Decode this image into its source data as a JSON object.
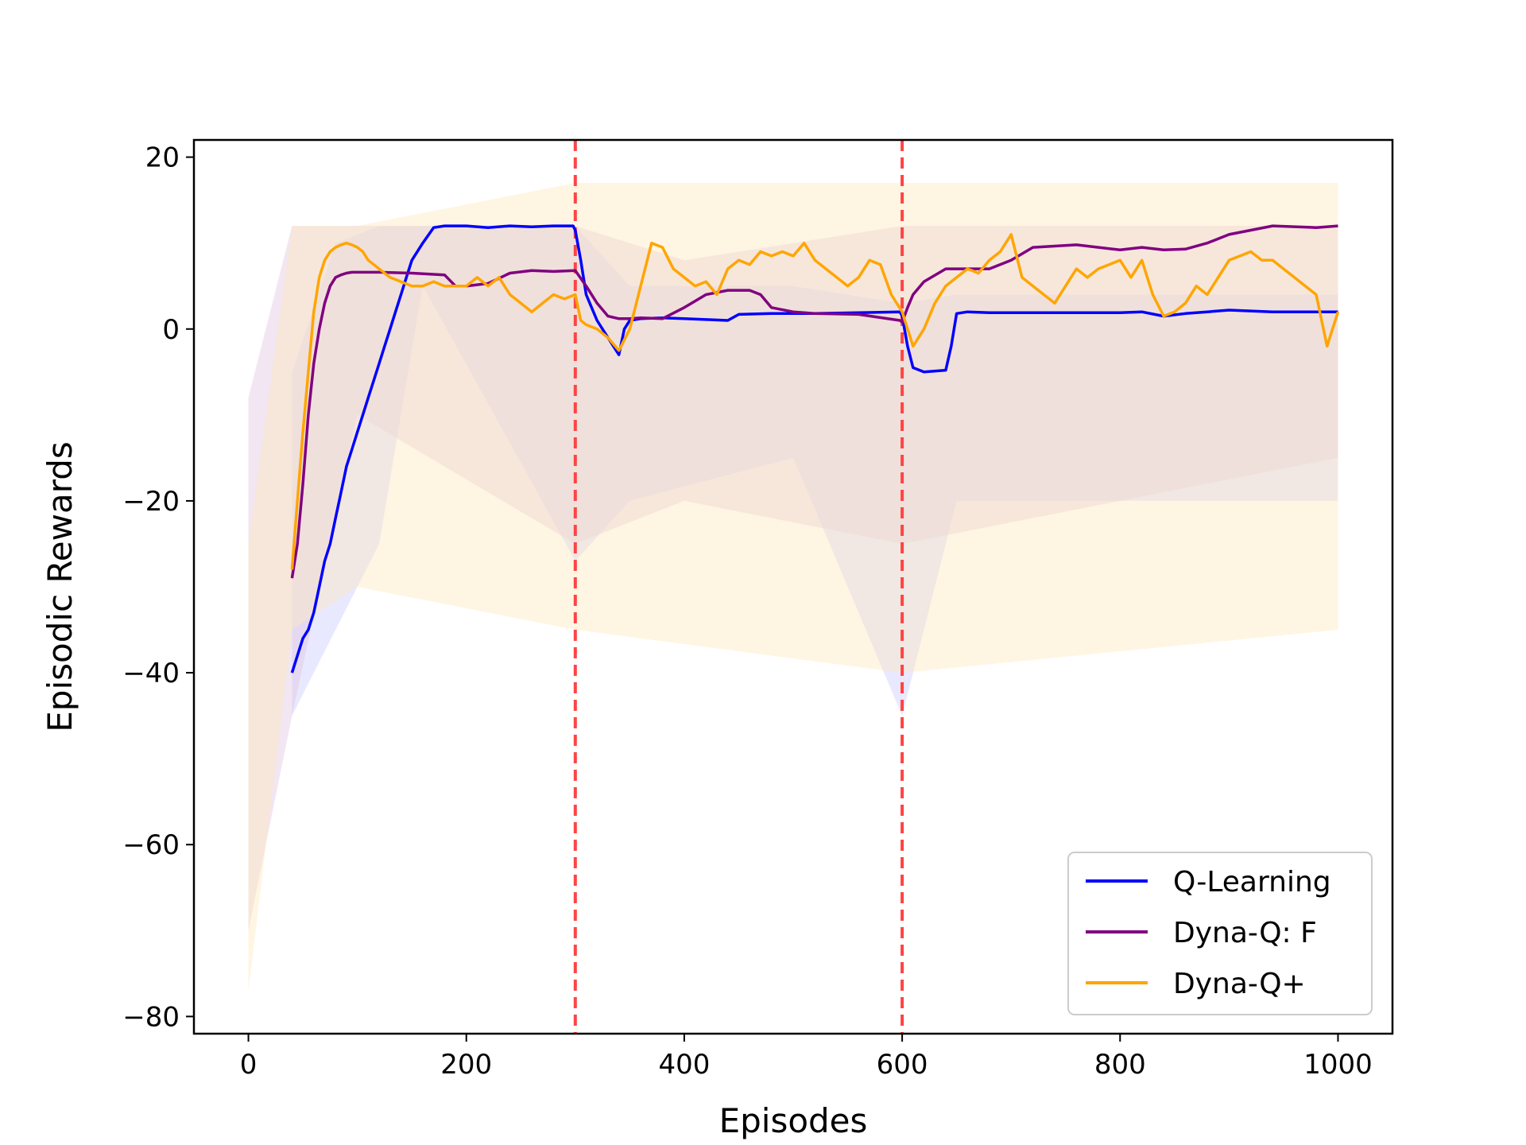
{
  "chart_data": {
    "type": "line",
    "title": "",
    "xlabel": "Episodes",
    "ylabel": "Episodic Rewards",
    "xlim": [
      -50,
      1050
    ],
    "ylim": [
      -82,
      22
    ],
    "xticks": [
      0,
      200,
      400,
      600,
      800,
      1000
    ],
    "yticks": [
      -80,
      -60,
      -40,
      -20,
      0,
      20
    ],
    "xtick_labels": [
      "0",
      "200",
      "400",
      "600",
      "800",
      "1000"
    ],
    "ytick_labels": [
      "−80",
      "−60",
      "−40",
      "−20",
      "0",
      "20"
    ],
    "grid": false,
    "legend_position": "bottom-right",
    "vertical_markers": [
      {
        "x": 300,
        "color": "#ff4444",
        "style": "dashed"
      },
      {
        "x": 600,
        "color": "#ff4444",
        "style": "dashed"
      }
    ],
    "series": [
      {
        "name": "Q-Learning",
        "color": "#0000ff",
        "x": [
          40,
          45,
          50,
          55,
          60,
          65,
          70,
          75,
          80,
          85,
          90,
          95,
          100,
          105,
          110,
          115,
          120,
          125,
          130,
          135,
          140,
          145,
          150,
          160,
          170,
          180,
          200,
          220,
          240,
          260,
          280,
          298,
          300,
          305,
          310,
          320,
          330,
          340,
          345,
          350,
          360,
          380,
          400,
          420,
          440,
          450,
          480,
          520,
          560,
          598,
          600,
          605,
          610,
          620,
          640,
          645,
          650,
          660,
          680,
          720,
          760,
          800,
          820,
          840,
          860,
          880,
          900,
          940,
          980,
          1000
        ],
        "values": [
          -40,
          -38,
          -36,
          -35,
          -33,
          -30,
          -27,
          -25,
          -22,
          -19,
          -16,
          -14,
          -12,
          -10,
          -8,
          -6,
          -4,
          -2,
          0,
          2,
          4,
          6,
          8,
          10,
          11.8,
          12,
          12,
          11.8,
          12,
          11.9,
          12,
          12,
          11.5,
          8,
          4,
          1,
          -1,
          -3,
          0,
          1,
          1.2,
          1.3,
          1.2,
          1.1,
          1,
          1.7,
          1.8,
          1.8,
          1.9,
          2,
          1.5,
          -2,
          -4.5,
          -5,
          -4.8,
          -2,
          1.8,
          2,
          1.9,
          1.9,
          1.9,
          1.9,
          2,
          1.5,
          1.8,
          2,
          2.2,
          2,
          2,
          2
        ]
      },
      {
        "name": "Dyna-Q: F",
        "color": "#800080",
        "x": [
          40,
          45,
          50,
          55,
          60,
          65,
          70,
          75,
          80,
          85,
          90,
          95,
          100,
          120,
          150,
          180,
          190,
          200,
          220,
          240,
          260,
          280,
          300,
          310,
          320,
          330,
          340,
          350,
          360,
          380,
          400,
          420,
          440,
          460,
          470,
          480,
          500,
          520,
          560,
          598,
          600,
          605,
          610,
          620,
          640,
          660,
          680,
          700,
          720,
          760,
          800,
          820,
          840,
          860,
          880,
          900,
          940,
          980,
          1000
        ],
        "values": [
          -29,
          -25,
          -18,
          -10,
          -4,
          0,
          3,
          5,
          6,
          6.3,
          6.5,
          6.6,
          6.6,
          6.6,
          6.5,
          6.3,
          5,
          5,
          5.3,
          6.5,
          6.8,
          6.7,
          6.8,
          5,
          3,
          1.5,
          1.2,
          1.2,
          1.3,
          1.2,
          2.5,
          4,
          4.5,
          4.5,
          4,
          2.5,
          2,
          1.8,
          1.7,
          1,
          0.8,
          2.5,
          4,
          5.5,
          7,
          7,
          7,
          8,
          9.5,
          9.8,
          9.2,
          9.5,
          9.2,
          9.3,
          10,
          11,
          12,
          11.8,
          12
        ]
      },
      {
        "name": "Dyna-Q+",
        "color": "#ffa500",
        "x": [
          40,
          45,
          50,
          55,
          60,
          65,
          70,
          75,
          80,
          85,
          90,
          95,
          100,
          105,
          110,
          120,
          130,
          140,
          150,
          160,
          170,
          180,
          190,
          200,
          210,
          220,
          230,
          240,
          250,
          260,
          270,
          280,
          290,
          300,
          305,
          310,
          320,
          330,
          340,
          350,
          360,
          370,
          380,
          390,
          400,
          410,
          420,
          430,
          440,
          450,
          460,
          470,
          480,
          490,
          500,
          510,
          520,
          530,
          540,
          550,
          560,
          570,
          580,
          590,
          600,
          610,
          620,
          630,
          640,
          650,
          660,
          670,
          680,
          690,
          700,
          710,
          720,
          730,
          740,
          750,
          760,
          770,
          780,
          790,
          800,
          810,
          820,
          830,
          840,
          850,
          860,
          870,
          880,
          890,
          900,
          910,
          920,
          930,
          940,
          950,
          960,
          970,
          980,
          990,
          1000
        ],
        "values": [
          -28,
          -20,
          -12,
          -5,
          2,
          6,
          8,
          9,
          9.5,
          9.8,
          10,
          9.8,
          9.5,
          9,
          8,
          7,
          6,
          5.5,
          5,
          5,
          5.5,
          5,
          5,
          5,
          6,
          5,
          6,
          4,
          3,
          2,
          3,
          4,
          3.5,
          4,
          1,
          0.5,
          0,
          -1,
          -2.5,
          0,
          5,
          10,
          9.5,
          7,
          6,
          5,
          5.5,
          4,
          7,
          8,
          7.5,
          9,
          8.5,
          9,
          8.5,
          10,
          8,
          7,
          6,
          5,
          6,
          8,
          7.5,
          4,
          2,
          -2,
          0,
          3,
          5,
          6,
          7,
          6.5,
          8,
          9,
          11,
          6,
          5,
          4,
          3,
          5,
          7,
          6,
          7,
          7.5,
          8,
          6,
          8,
          4,
          1.5,
          2,
          3,
          5,
          4,
          6,
          8,
          8.5,
          9,
          8,
          8,
          7,
          6,
          5,
          4,
          -2,
          2
        ]
      }
    ],
    "raw_bands": [
      {
        "name": "Q-Learning",
        "color": "#ccccff",
        "segments": [
          [
            40,
            -45,
            -5
          ],
          [
            80,
            -35,
            10
          ],
          [
            120,
            -25,
            12
          ],
          [
            160,
            5,
            12
          ],
          [
            300,
            -27,
            12
          ],
          [
            350,
            -20,
            5
          ],
          [
            500,
            -15,
            5
          ],
          [
            600,
            -45,
            3
          ],
          [
            650,
            -20,
            4
          ],
          [
            1000,
            -20,
            4
          ]
        ]
      },
      {
        "name": "Dyna-Q: F",
        "color": "#e0c8e0",
        "segments": [
          [
            0,
            -70,
            -8
          ],
          [
            40,
            -45,
            12
          ],
          [
            100,
            -10,
            12
          ],
          [
            300,
            -25,
            12
          ],
          [
            400,
            -20,
            8
          ],
          [
            600,
            -25,
            12
          ],
          [
            1000,
            -15,
            12
          ]
        ]
      },
      {
        "name": "Dyna-Q+",
        "color": "#ffe8c0",
        "segments": [
          [
            0,
            -77,
            -25
          ],
          [
            40,
            -35,
            12
          ],
          [
            100,
            -30,
            12
          ],
          [
            300,
            -35,
            17
          ],
          [
            600,
            -40,
            17
          ],
          [
            1000,
            -35,
            17
          ]
        ]
      }
    ]
  }
}
